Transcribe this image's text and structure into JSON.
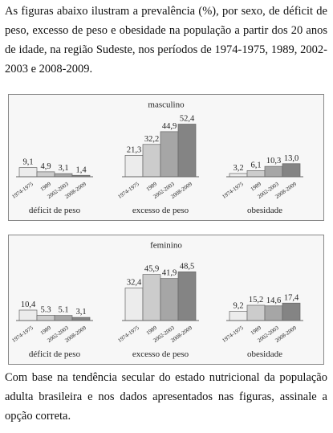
{
  "intro": "As figuras abaixo ilustram a prevalência (%), por sexo, de déficit de peso, excesso de peso e obesidade na população a partir dos 20 anos de idade, na região Sudeste, nos períodos de 1974-1975, 1989, 2002-2003 e 2008-2009.",
  "chart_data": [
    {
      "type": "bar",
      "title": "masculino",
      "categories": [
        "déficit de peso",
        "excesso de peso",
        "obesidade"
      ],
      "series": [
        {
          "name": "1974-1975",
          "color": "#ececec",
          "values": [
            9.1,
            21.3,
            3.2
          ],
          "value_labels": [
            "9,1",
            "21,3",
            "3,2"
          ]
        },
        {
          "name": "1989",
          "color": "#cccccc",
          "values": [
            4.9,
            32.2,
            6.1
          ],
          "value_labels": [
            "4,9",
            "32,2",
            "6,1"
          ]
        },
        {
          "name": "2002-2003",
          "color": "#a6a6a6",
          "values": [
            3.1,
            44.9,
            10.3
          ],
          "value_labels": [
            "3,1",
            "44,9",
            "10,3"
          ]
        },
        {
          "name": "2008-2009",
          "color": "#848484",
          "values": [
            1.4,
            52.4,
            13.0
          ],
          "value_labels": [
            "1,4",
            "52,4",
            "13,0"
          ]
        }
      ]
    },
    {
      "type": "bar",
      "title": "feminino",
      "categories": [
        "déficit de peso",
        "excesso de peso",
        "obesidade"
      ],
      "series": [
        {
          "name": "1974-1975",
          "color": "#ececec",
          "values": [
            10.4,
            32.4,
            9.2
          ],
          "value_labels": [
            "10,4",
            "32,4",
            "9,2"
          ]
        },
        {
          "name": "1989",
          "color": "#cccccc",
          "values": [
            5.3,
            45.9,
            15.2
          ],
          "value_labels": [
            "5.3",
            "45,9",
            "15,2"
          ]
        },
        {
          "name": "2002-2003",
          "color": "#a6a6a6",
          "values": [
            5.1,
            41.9,
            14.6
          ],
          "value_labels": [
            "5.1",
            "41,9",
            "14,6"
          ]
        },
        {
          "name": "2008-2009",
          "color": "#848484",
          "values": [
            3.1,
            48.5,
            17.4
          ],
          "value_labels": [
            "3,1",
            "48,5",
            "17,4"
          ]
        }
      ]
    }
  ],
  "outro": "Com base na tendência secular do estado nutricional da população adulta brasileira e nos dados apresentados nas figuras, assinale a opção correta."
}
